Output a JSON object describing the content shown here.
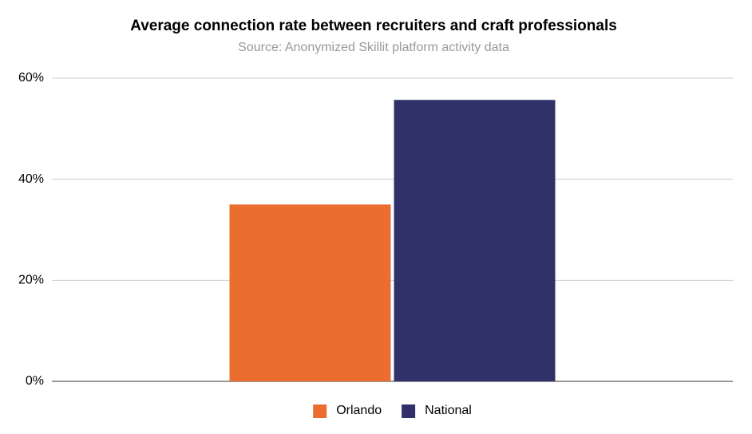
{
  "chart_data": {
    "type": "bar",
    "title": "Average connection rate between recruiters and craft professionals",
    "subtitle": "Source: Anonymized Skillit platform activity data",
    "categories": [
      null
    ],
    "series": [
      {
        "name": "Orlando",
        "color": "#eb6d2f",
        "values": [
          35
        ]
      },
      {
        "name": "National",
        "color": "#2f3168",
        "values": [
          55.7
        ]
      }
    ],
    "ylim": [
      0,
      60
    ],
    "yticks": [
      {
        "value": 0,
        "label": "0%"
      },
      {
        "value": 20,
        "label": "20%"
      },
      {
        "value": 40,
        "label": "40%"
      },
      {
        "value": 60,
        "label": "60%"
      }
    ],
    "grid": true,
    "legend": "bottom"
  }
}
